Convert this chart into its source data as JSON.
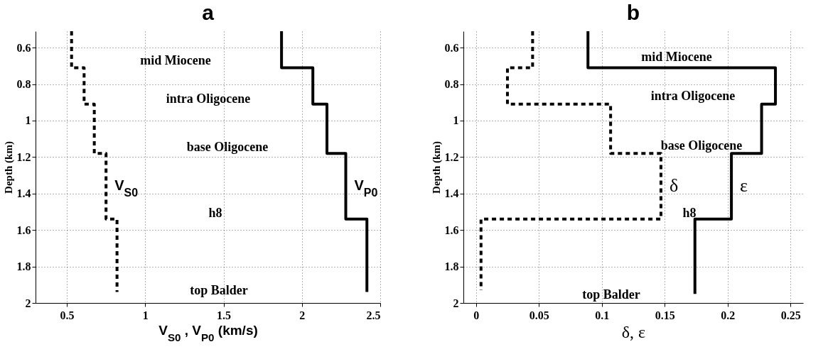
{
  "chart_data": [
    {
      "type": "line",
      "title": "a",
      "xlabel": "V$_{S0}$ , V$_{P0}$ (km/s)",
      "ylabel": "Depth (km)",
      "xlim": [
        0.3,
        2.5
      ],
      "xticks": [
        0.5,
        1,
        1.5,
        2,
        2.5
      ],
      "ylim": [
        2,
        0.51
      ],
      "yticks": [
        0.6,
        0.8,
        1,
        1.2,
        1.4,
        1.6,
        1.8,
        2
      ],
      "grid": true,
      "series": [
        {
          "name": "V$_{S0}$",
          "color": "#000000",
          "line_style": "dashed",
          "x": [
            0.53,
            0.53,
            0.61,
            0.61,
            0.675,
            0.675,
            0.75,
            0.75,
            0.82,
            0.82
          ],
          "values": [
            0.51,
            0.71,
            0.71,
            0.91,
            0.91,
            1.18,
            1.18,
            1.54,
            1.54,
            1.94
          ]
        },
        {
          "name": "V$_{P0}$",
          "color": "#000000",
          "line_style": "solid",
          "x": [
            1.87,
            1.87,
            2.07,
            2.07,
            2.16,
            2.16,
            2.28,
            2.28,
            2.415,
            2.415
          ],
          "values": [
            0.51,
            0.71,
            0.71,
            0.91,
            0.91,
            1.18,
            1.18,
            1.54,
            1.54,
            1.94
          ]
        }
      ],
      "annotations": [
        "mid  Miocene",
        "intra  Oligocene",
        "base  Oligocene",
        "h8",
        "top  Balder"
      ]
    },
    {
      "type": "line",
      "title": "b",
      "xlabel": "δ, ε",
      "ylabel": "Depth (km)",
      "xlim": [
        -0.01,
        0.26
      ],
      "xticks": [
        0,
        0.05,
        0.1,
        0.15,
        0.2,
        0.25
      ],
      "ylim": [
        2,
        0.51
      ],
      "yticks": [
        0.6,
        0.8,
        1,
        1.2,
        1.4,
        1.6,
        1.8,
        2
      ],
      "grid": true,
      "series": [
        {
          "name": "δ",
          "color": "#000000",
          "line_style": "dashed",
          "x": [
            0.045,
            0.045,
            0.025,
            0.025,
            0.107,
            0.107,
            0.147,
            0.147,
            0.004,
            0.004
          ],
          "values": [
            0.51,
            0.71,
            0.71,
            0.91,
            0.91,
            1.18,
            1.18,
            1.54,
            1.54,
            1.93
          ]
        },
        {
          "name": "ε",
          "color": "#000000",
          "line_style": "solid",
          "x": [
            0.089,
            0.089,
            0.238,
            0.238,
            0.227,
            0.227,
            0.203,
            0.203,
            0.174,
            0.174
          ],
          "values": [
            0.51,
            0.71,
            0.71,
            0.91,
            0.91,
            1.18,
            1.18,
            1.54,
            1.54,
            1.95
          ]
        }
      ],
      "annotations": [
        "mid  Miocene",
        "intra  Oligocene",
        "base  Oligocene",
        "h8",
        "top  Balder"
      ]
    }
  ]
}
